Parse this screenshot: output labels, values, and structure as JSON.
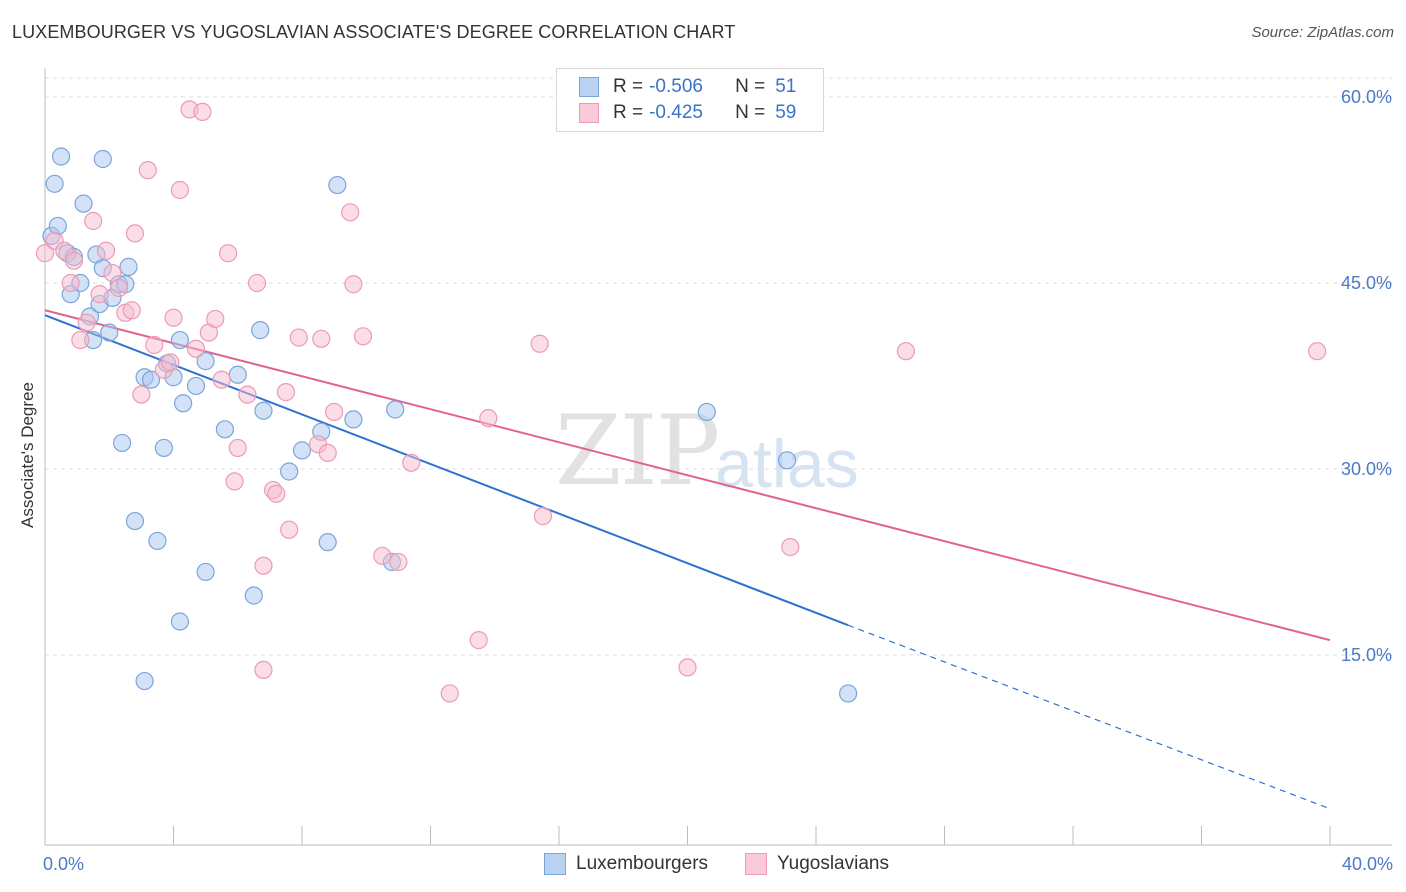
{
  "title": "LUXEMBOURGER VS YUGOSLAVIAN ASSOCIATE'S DEGREE CORRELATION CHART",
  "source": "Source: ZipAtlas.com",
  "watermark": {
    "zip": "ZIP",
    "atlas": "atlas"
  },
  "legend": {
    "rows": [
      {
        "r_label": "R = ",
        "r_value": "-0.506",
        "n_label": "N = ",
        "n_value": "51"
      },
      {
        "r_label": "R = ",
        "r_value": "-0.425",
        "n_label": "N = ",
        "n_value": "59"
      }
    ]
  },
  "bottom_legend": {
    "series_a": "Luxembourgers",
    "series_b": "Yugoslavians"
  },
  "colors": {
    "blue_fill": "#a8c6ee",
    "blue_stroke": "#7aa6dc",
    "blue_line": "#2f72d0",
    "pink_fill": "#f6bccd",
    "pink_stroke": "#ee9ab4",
    "pink_line": "#e0648c",
    "grid": "#dcdcdc",
    "axis_text": "#4a7ac8"
  },
  "chart_data": {
    "type": "scatter",
    "title": "LUXEMBOURGER VS YUGOSLAVIAN ASSOCIATE'S DEGREE CORRELATION CHART",
    "xlabel": "",
    "ylabel": "Associate's Degree",
    "xlim": [
      0,
      40
    ],
    "ylim": [
      0,
      62.5
    ],
    "x_tick_labels": [
      {
        "value": 0,
        "label": "0.0%"
      },
      {
        "value": 40,
        "label": "40.0%"
      }
    ],
    "y_tick_labels": [
      {
        "value": 15,
        "label": "15.0%"
      },
      {
        "value": 30,
        "label": "30.0%"
      },
      {
        "value": 45,
        "label": "45.0%"
      },
      {
        "value": 60,
        "label": "60.0%"
      }
    ],
    "x_minor_ticks": [
      4,
      8,
      12,
      16,
      20,
      24,
      28,
      32,
      36,
      40
    ],
    "series": [
      {
        "name": "Luxembourgers",
        "color": "blue",
        "R": -0.506,
        "N": 51,
        "trend": {
          "x0": 0,
          "y0": 42.4,
          "x1": 25.0,
          "y1": 17.4,
          "dash_to_x": 40,
          "dash_to_y": 2.6
        },
        "points": [
          [
            0.2,
            48.8
          ],
          [
            0.3,
            53.0
          ],
          [
            0.4,
            49.6
          ],
          [
            0.5,
            55.2
          ],
          [
            0.7,
            47.4
          ],
          [
            0.8,
            44.1
          ],
          [
            0.9,
            47.1
          ],
          [
            1.1,
            45.0
          ],
          [
            1.2,
            51.4
          ],
          [
            1.4,
            42.3
          ],
          [
            1.5,
            40.4
          ],
          [
            1.6,
            47.3
          ],
          [
            1.7,
            43.3
          ],
          [
            1.8,
            55.0
          ],
          [
            1.8,
            46.2
          ],
          [
            2.0,
            41.0
          ],
          [
            2.1,
            43.8
          ],
          [
            2.3,
            44.9
          ],
          [
            2.4,
            32.1
          ],
          [
            2.5,
            44.9
          ],
          [
            2.6,
            46.3
          ],
          [
            2.8,
            25.8
          ],
          [
            3.1,
            12.9
          ],
          [
            3.1,
            37.4
          ],
          [
            3.3,
            37.2
          ],
          [
            3.5,
            24.2
          ],
          [
            3.7,
            31.7
          ],
          [
            3.8,
            38.5
          ],
          [
            4.0,
            37.4
          ],
          [
            4.2,
            17.7
          ],
          [
            4.2,
            40.4
          ],
          [
            4.3,
            35.3
          ],
          [
            4.7,
            36.7
          ],
          [
            5.0,
            38.7
          ],
          [
            5.0,
            21.7
          ],
          [
            5.6,
            33.2
          ],
          [
            6.0,
            37.6
          ],
          [
            6.5,
            19.8
          ],
          [
            6.7,
            41.2
          ],
          [
            6.8,
            34.7
          ],
          [
            7.6,
            29.8
          ],
          [
            8.0,
            31.5
          ],
          [
            8.6,
            33.0
          ],
          [
            8.8,
            24.1
          ],
          [
            9.1,
            52.9
          ],
          [
            9.6,
            34.0
          ],
          [
            10.8,
            22.5
          ],
          [
            10.9,
            34.8
          ],
          [
            20.6,
            34.6
          ],
          [
            23.1,
            30.7
          ],
          [
            25.0,
            11.9
          ]
        ]
      },
      {
        "name": "Yugoslavians",
        "color": "pink",
        "R": -0.425,
        "N": 59,
        "trend": {
          "x0": 0,
          "y0": 42.8,
          "x1": 40,
          "y1": 16.2
        },
        "points": [
          [
            0.0,
            47.4
          ],
          [
            0.3,
            48.4
          ],
          [
            0.6,
            47.6
          ],
          [
            0.8,
            45.0
          ],
          [
            0.9,
            46.8
          ],
          [
            1.1,
            40.4
          ],
          [
            1.3,
            41.8
          ],
          [
            1.5,
            50.0
          ],
          [
            1.7,
            44.1
          ],
          [
            1.9,
            47.6
          ],
          [
            2.1,
            45.8
          ],
          [
            2.3,
            44.6
          ],
          [
            2.5,
            42.6
          ],
          [
            2.7,
            42.8
          ],
          [
            2.8,
            49.0
          ],
          [
            3.0,
            36.0
          ],
          [
            3.2,
            54.1
          ],
          [
            3.4,
            40.0
          ],
          [
            3.7,
            38.0
          ],
          [
            3.9,
            38.6
          ],
          [
            4.0,
            42.2
          ],
          [
            4.2,
            52.5
          ],
          [
            4.5,
            59.0
          ],
          [
            4.9,
            58.8
          ],
          [
            4.7,
            39.7
          ],
          [
            5.1,
            41.0
          ],
          [
            5.3,
            42.1
          ],
          [
            5.5,
            37.2
          ],
          [
            5.7,
            47.4
          ],
          [
            5.9,
            29.0
          ],
          [
            6.0,
            31.7
          ],
          [
            6.3,
            36.0
          ],
          [
            6.6,
            45.0
          ],
          [
            6.8,
            13.8
          ],
          [
            6.8,
            22.2
          ],
          [
            7.1,
            28.3
          ],
          [
            7.2,
            28.0
          ],
          [
            7.5,
            36.2
          ],
          [
            7.6,
            25.1
          ],
          [
            7.9,
            40.6
          ],
          [
            8.5,
            32.0
          ],
          [
            8.6,
            40.5
          ],
          [
            8.8,
            31.3
          ],
          [
            9.0,
            34.6
          ],
          [
            9.5,
            50.7
          ],
          [
            9.6,
            44.9
          ],
          [
            9.9,
            40.7
          ],
          [
            10.5,
            23.0
          ],
          [
            11.0,
            22.5
          ],
          [
            11.4,
            30.5
          ],
          [
            12.6,
            11.9
          ],
          [
            13.5,
            16.2
          ],
          [
            13.8,
            34.1
          ],
          [
            15.4,
            40.1
          ],
          [
            15.5,
            26.2
          ],
          [
            20.0,
            14.0
          ],
          [
            23.2,
            23.7
          ],
          [
            26.8,
            39.5
          ],
          [
            39.6,
            39.5
          ]
        ]
      }
    ]
  }
}
